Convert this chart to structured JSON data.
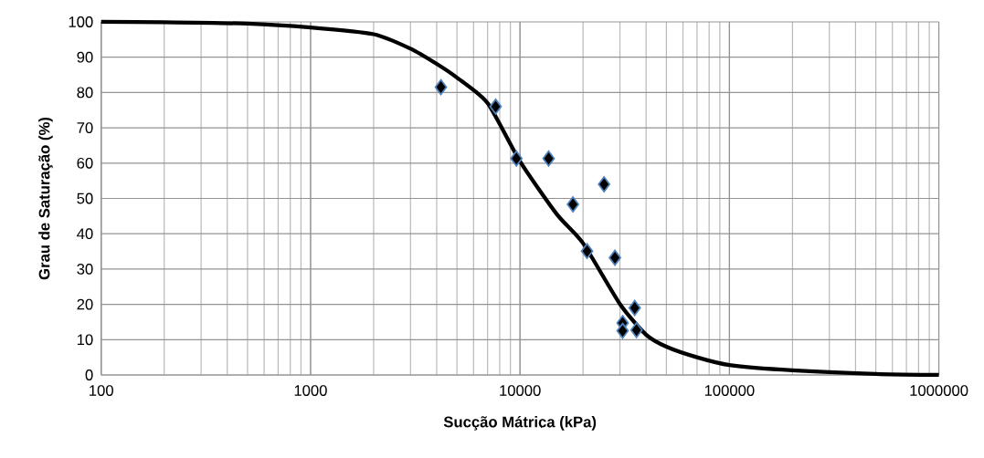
{
  "chart_data": {
    "type": "scatter",
    "xlabel": "Sucção Mátrica (kPa)",
    "ylabel": "Grau de Saturação (%)",
    "log": "x",
    "grid": true,
    "xlim": [
      100,
      1000000
    ],
    "xticks": [
      100,
      1000,
      10000,
      100000,
      1000000
    ],
    "ylim": [
      0,
      100
    ],
    "yticks": [
      0,
      10,
      20,
      30,
      40,
      50,
      60,
      70,
      80,
      90,
      100
    ],
    "series": [
      {
        "color": "#000000",
        "marker": "diamond",
        "x": [
          4190,
          7650,
          9610,
          13700,
          17900,
          25200,
          20900,
          28400,
          35300,
          30900,
          30900,
          36000
        ],
        "values": [
          81.5,
          76.0,
          61.3,
          61.3,
          48.3,
          54.0,
          35.1,
          33.2,
          19.0,
          14.7,
          12.5,
          12.7
        ]
      },
      {
        "type": "line",
        "color": "#000000",
        "line_style": "solid",
        "x": [
          100,
          200,
          500,
          1000,
          2000,
          3000,
          4000,
          5000,
          7000,
          10000,
          15000,
          20000,
          30000,
          40000,
          50000,
          70000,
          100000,
          200000,
          500000,
          1000000
        ],
        "values": [
          100,
          99.9,
          99.5,
          98.4,
          96.5,
          92.4,
          88.1,
          84.2,
          77.0,
          60.5,
          45.5,
          37.3,
          20.1,
          11.4,
          8.0,
          5.0,
          2.8,
          1.3,
          0.3,
          0
        ]
      }
    ]
  }
}
